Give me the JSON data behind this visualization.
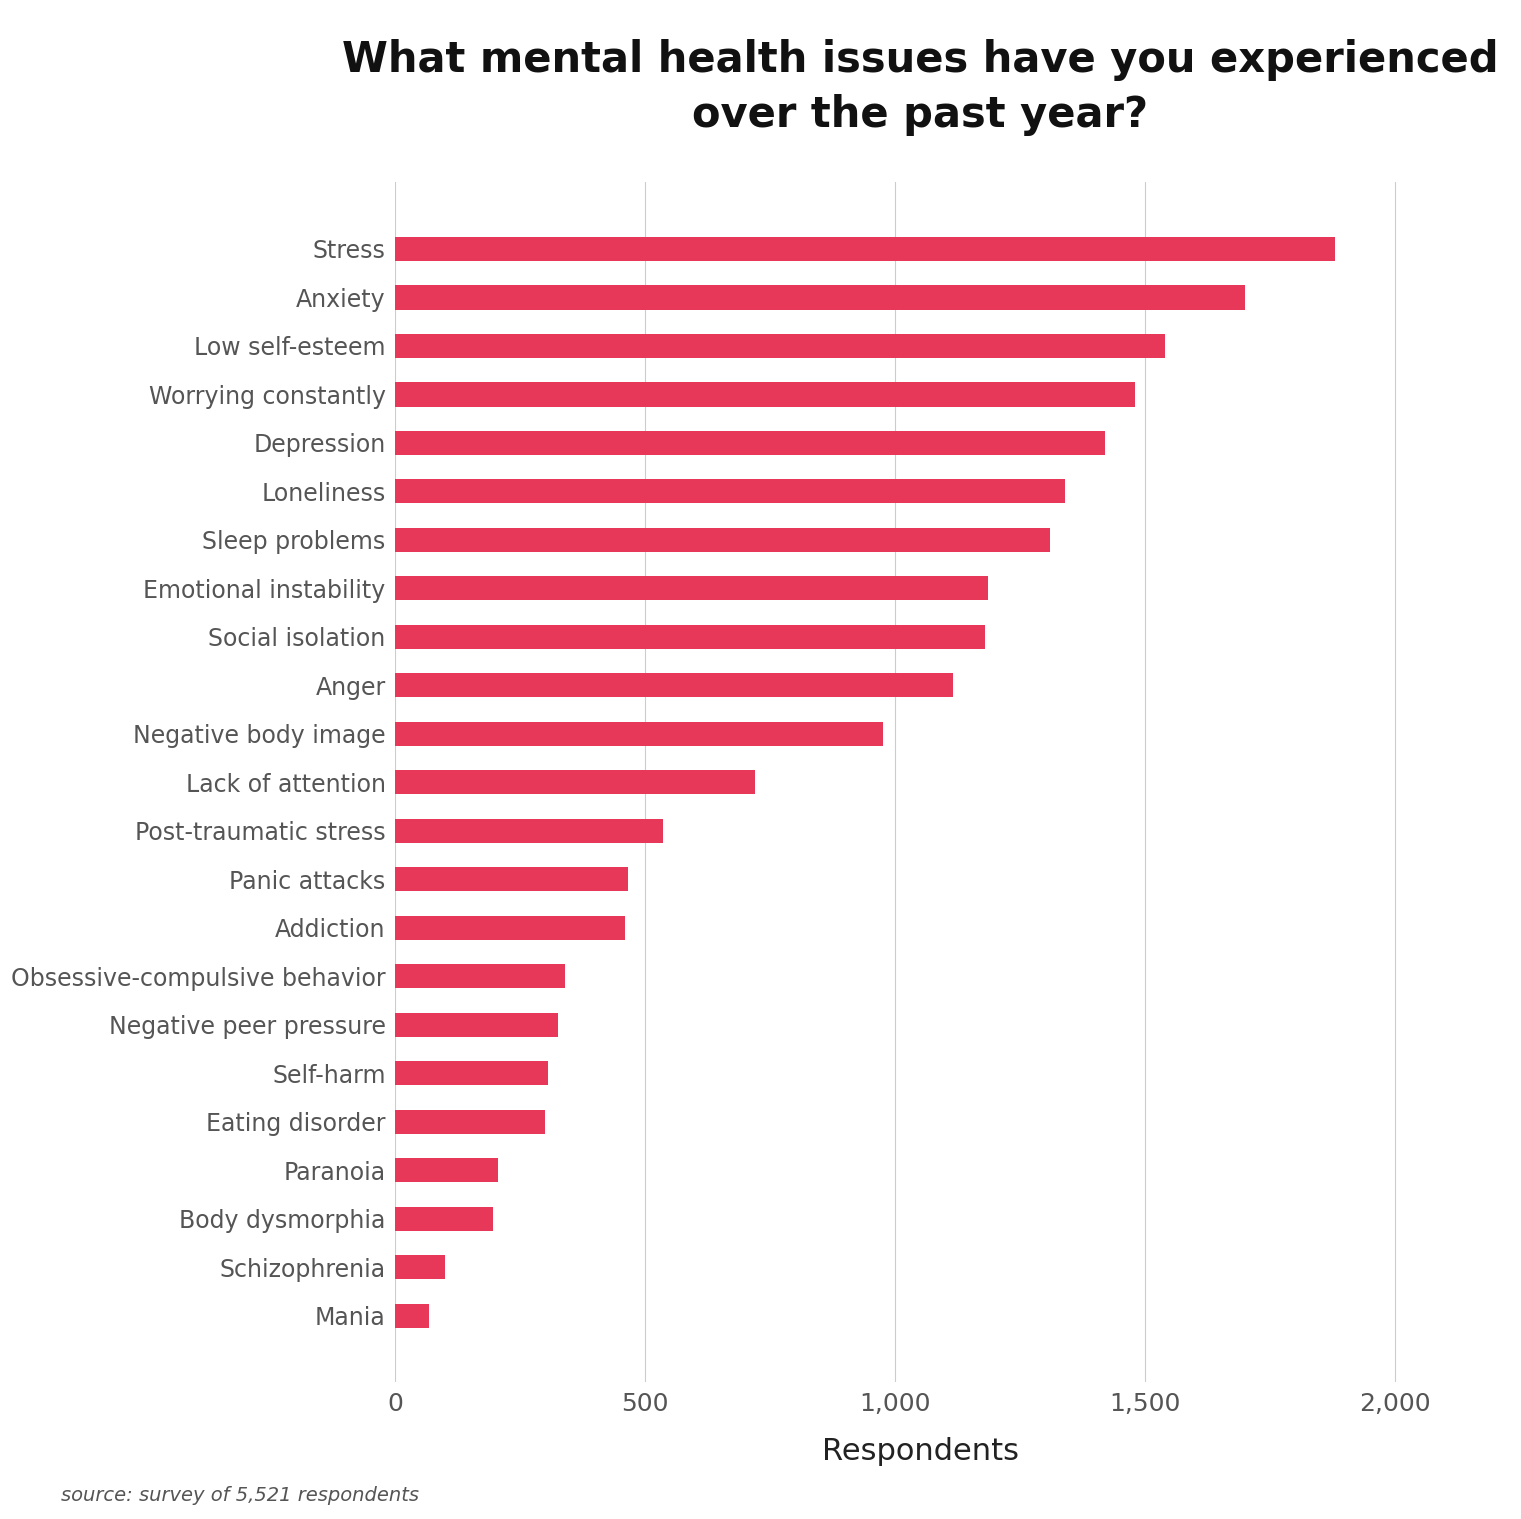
{
  "title": "What mental health issues have you experienced\nover the past year?",
  "xlabel": "Respondents",
  "source_text": "source: survey of 5,521 respondents",
  "bar_color": "#E8385A",
  "background_color": "#ffffff",
  "categories": [
    "Stress",
    "Anxiety",
    "Low self-esteem",
    "Worrying constantly",
    "Depression",
    "Loneliness",
    "Sleep problems",
    "Emotional instability",
    "Social isolation",
    "Anger",
    "Negative body image",
    "Lack of attention",
    "Post-traumatic stress",
    "Panic attacks",
    "Addiction",
    "Obsessive-compulsive behavior",
    "Negative peer pressure",
    "Self-harm",
    "Eating disorder",
    "Paranoia",
    "Body dysmorphia",
    "Schizophrenia",
    "Mania"
  ],
  "values": [
    1880,
    1700,
    1540,
    1480,
    1420,
    1340,
    1310,
    1185,
    1180,
    1115,
    975,
    720,
    535,
    465,
    460,
    340,
    325,
    305,
    300,
    205,
    195,
    100,
    68
  ],
  "xlim": [
    0,
    2100
  ],
  "xticks": [
    0,
    500,
    1000,
    1500,
    2000
  ],
  "xticklabels": [
    "0",
    "500",
    "1,000",
    "1,500",
    "2,000"
  ],
  "title_fontsize": 30,
  "xlabel_fontsize": 22,
  "ytick_fontsize": 17,
  "xtick_fontsize": 18,
  "grid_color": "#cccccc",
  "text_color": "#222222",
  "label_color": "#555555",
  "source_fontsize": 14
}
